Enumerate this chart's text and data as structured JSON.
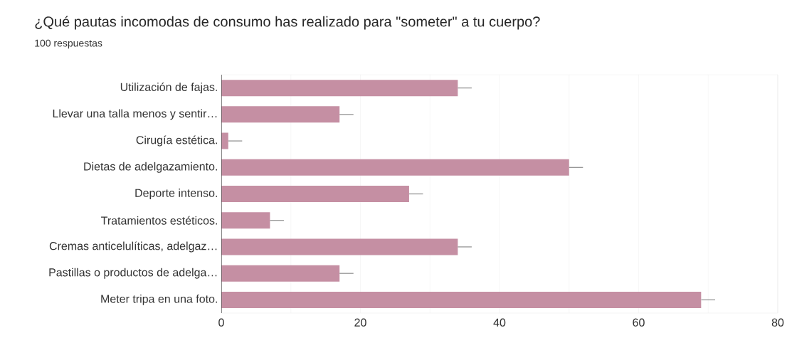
{
  "chart_data": {
    "type": "bar",
    "orientation": "horizontal",
    "title": "¿Qué pautas incomodas de consumo has realizado para \"someter\" a tu cuerpo?",
    "subtitle": "100 respuestas",
    "categories": [
      "Utilización de fajas.",
      "Llevar una talla menos y sentir…",
      "Cirugía estética.",
      "Dietas de adelgazamiento.",
      "Deporte intenso.",
      "Tratamientos estéticos.",
      "Cremas anticelulíticas, adelgaz…",
      "Pastillas o productos de adelga…",
      "Meter tripa en una foto."
    ],
    "values": [
      34,
      17,
      1,
      50,
      27,
      7,
      34,
      17,
      69
    ],
    "errors": [
      [
        34,
        36
      ],
      [
        17,
        19
      ],
      [
        1,
        3
      ],
      [
        50,
        52
      ],
      [
        27,
        29
      ],
      [
        7,
        9
      ],
      [
        34,
        36
      ],
      [
        17,
        19
      ],
      [
        69,
        71
      ]
    ],
    "color": "#c58fa3",
    "xlim": [
      0,
      80
    ],
    "xticks": [
      0,
      {
        "value": 10,
        "label": null
      },
      20,
      {
        "value": 30,
        "label": null
      },
      40,
      {
        "value": 50,
        "label": null
      },
      60,
      {
        "value": 70,
        "label": null
      },
      80
    ],
    "grid": "x"
  }
}
